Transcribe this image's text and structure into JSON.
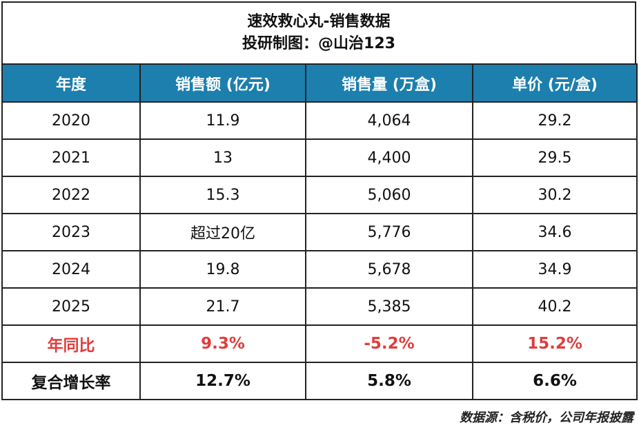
{
  "title": {
    "line1": "速效救心丸-销售数据",
    "line2": "投研制图：@山治123"
  },
  "table": {
    "headers": [
      "年度",
      "销售额 (亿元)",
      "销售量 (万盒)",
      "单价 (元/盒)"
    ],
    "rows": [
      [
        "2020",
        "11.9",
        "4,064",
        "29.2"
      ],
      [
        "2021",
        "13",
        "4,400",
        "29.5"
      ],
      [
        "2022",
        "15.3",
        "5,060",
        "30.2"
      ],
      [
        "2023",
        "超过20亿",
        "5,776",
        "34.6"
      ],
      [
        "2024",
        "19.8",
        "5,678",
        "34.9"
      ],
      [
        "2025",
        "21.7",
        "5,385",
        "40.2"
      ]
    ],
    "yoy": [
      "年同比",
      "9.3%",
      "-5.2%",
      "15.2%"
    ],
    "cagr": [
      "复合增长率",
      "12.7%",
      "5.8%",
      "6.6%"
    ]
  },
  "source": "数据源：含税价，公司年报披露",
  "colors": {
    "header_bg": "#1c7fae",
    "header_text": "#ffffff",
    "highlight_red": "#e23b3b"
  }
}
